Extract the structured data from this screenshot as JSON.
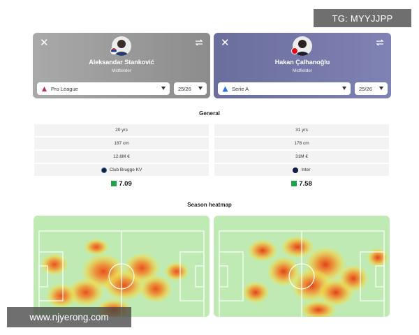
{
  "players": [
    {
      "name": "Aleksandar Stanković",
      "role": "Midfielder",
      "league": "Pro League",
      "season": "25/26",
      "age": "20 yrs",
      "height": "187 cm",
      "value": "12.6M €",
      "club": "Club Brugge KV",
      "rating": "7.09"
    },
    {
      "name": "Hakan Çalhanoğlu",
      "role": "Midfielder",
      "league": "Serie A",
      "season": "25/26",
      "age": "31 yrs",
      "height": "178 cm",
      "value": "31M €",
      "club": "Inter",
      "rating": "7.58"
    }
  ],
  "sections": {
    "general": "General",
    "heatmap": "Season heatmap"
  },
  "icons": {
    "close": "close-icon",
    "swap": "swap-icon",
    "dropdown": "chevron-down-icon"
  },
  "colors": {
    "rating_good": "#1fa24c",
    "pitch": "#bfeab3"
  },
  "watermarks": {
    "top": "TG: MYYJJPP",
    "bottom": "www.njyerong.com"
  }
}
